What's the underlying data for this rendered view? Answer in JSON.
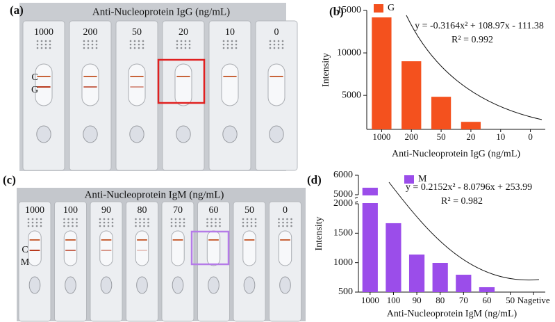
{
  "panel_a": {
    "label": "(a)",
    "title": "Anti-Nucleoprotein IgG (ng/mL)",
    "concentrations": [
      "1000",
      "200",
      "50",
      "20",
      "10",
      "0"
    ],
    "lines": [
      "C",
      "G"
    ]
  },
  "panel_c": {
    "label": "(c)",
    "title": "Anti-Nucleoprotein IgM (ng/mL)",
    "concentrations": [
      "1000",
      "100",
      "90",
      "80",
      "70",
      "60",
      "50",
      "0"
    ],
    "lines": [
      "C",
      "M"
    ]
  },
  "chart_data": [
    {
      "type": "bar",
      "panel_label": "(b)",
      "x_label": "Anti-Nucleoprotein IgG (ng/mL)",
      "y_label": "Intensity",
      "categories": [
        "1000",
        "200",
        "50",
        "20",
        "10",
        "0"
      ],
      "series": [
        {
          "name": "G",
          "color": "#f4511e",
          "values": [
            14180,
            9016,
            4836,
            1885,
            null,
            null
          ]
        }
      ],
      "ylim": [
        1000,
        15000
      ],
      "yticks": [
        5000,
        10000,
        15000
      ],
      "annotations": [
        "y = -0.3164x² + 108.97x - 111.38",
        "R² = 0.992"
      ]
    },
    {
      "type": "bar",
      "panel_label": "(d)",
      "x_label": "Anti-Nucleoprotein IgM (ng/mL)",
      "y_label": "Intensity",
      "categories": [
        "1000",
        "100",
        "90",
        "80",
        "70",
        "60",
        "50",
        "Nagetive"
      ],
      "series": [
        {
          "name": "M",
          "color": "#9b4dea",
          "values": [
            5360,
            1670,
            1138,
            996,
            795,
            583,
            null,
            null
          ]
        }
      ],
      "ylim": [
        500,
        6000
      ],
      "ybreak": [
        2000,
        5000
      ],
      "yticks": [
        500,
        1000,
        1500,
        2000,
        5000,
        6000
      ],
      "annotations": [
        "y = 0.2152x² - 8.0796x + 253.99",
        "R² = 0.982"
      ]
    }
  ]
}
